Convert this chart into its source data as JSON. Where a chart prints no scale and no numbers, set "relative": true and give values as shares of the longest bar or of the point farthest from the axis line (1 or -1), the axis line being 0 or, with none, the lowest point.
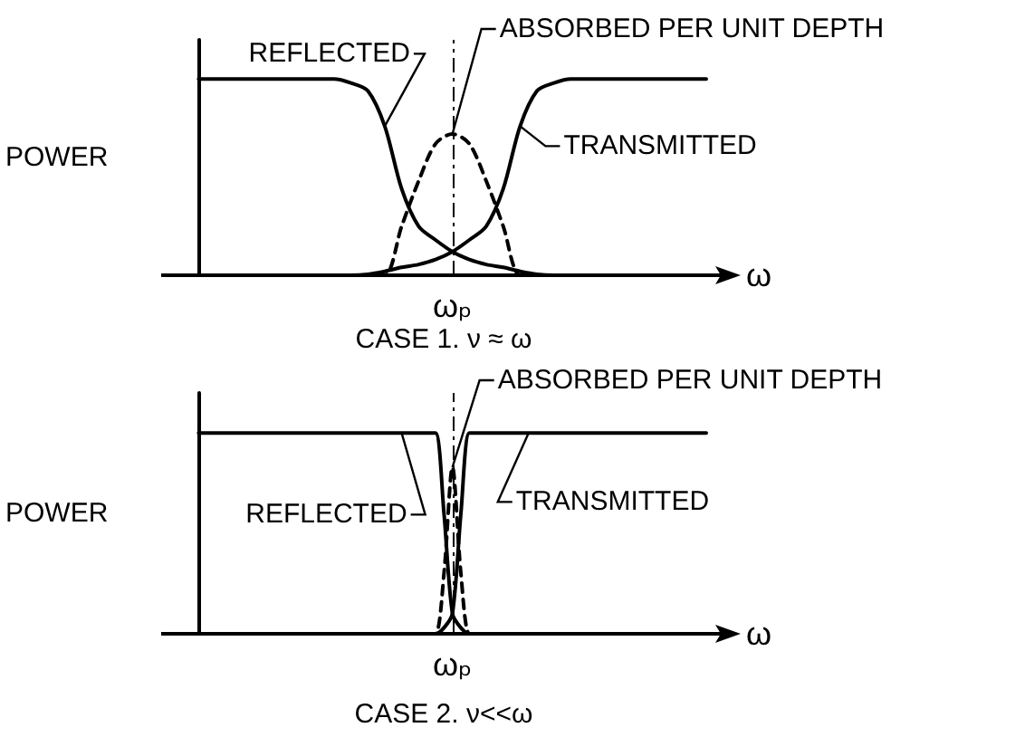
{
  "chart_data": [
    {
      "type": "line",
      "relative": true,
      "title": "CASE 1. ν ≈ ω",
      "xlabel": "ω",
      "ylabel": "POWER",
      "categories": [
        null,
        null,
        null,
        null,
        null,
        null,
        null,
        null,
        null,
        null,
        null,
        null,
        null,
        null,
        null,
        null,
        null,
        null,
        null,
        null,
        null,
        null,
        null,
        null,
        null,
        null,
        null,
        null,
        null,
        null,
        null
      ],
      "series": [
        {
          "name": "REFLECTED",
          "color": "#000000",
          "values": [
            1,
            1,
            1,
            1,
            1,
            1,
            1,
            1,
            1,
            0.98,
            0.94,
            0.76,
            0.44,
            0.25,
            0.18,
            0.12,
            0.08,
            0.055,
            0.04,
            0.02,
            0.005,
            0,
            0,
            0,
            0,
            0,
            0,
            0,
            0,
            0,
            0
          ]
        },
        {
          "name": "TRANSMITTED",
          "color": "#000000",
          "values": [
            0,
            0,
            0,
            0,
            0,
            0,
            0,
            0,
            0,
            0,
            0.005,
            0.02,
            0.04,
            0.055,
            0.08,
            0.12,
            0.18,
            0.25,
            0.44,
            0.76,
            0.94,
            0.98,
            1,
            1,
            1,
            1,
            1,
            1,
            1,
            1,
            1
          ]
        },
        {
          "name": "ABSORBED PER UNIT DEPTH",
          "color": "#000000",
          "line_style": "dashed",
          "values": [
            0,
            0,
            0,
            0,
            0,
            0,
            0,
            0,
            0,
            0,
            0,
            0,
            0.25,
            0.48,
            0.67,
            0.72,
            0.67,
            0.48,
            0.25,
            0,
            0,
            0,
            0,
            0,
            0,
            0,
            0,
            0,
            0,
            0,
            0
          ]
        }
      ],
      "annotations": [
        "ωₚ"
      ]
    },
    {
      "type": "line",
      "relative": true,
      "title": "CASE 2. ν<<ω",
      "xlabel": "ω",
      "ylabel": "POWER",
      "categories": [
        null,
        null,
        null,
        null,
        null,
        null,
        null,
        null,
        null,
        null,
        null,
        null,
        null,
        null,
        null,
        null,
        null,
        null,
        null,
        null,
        null,
        null,
        null,
        null,
        null,
        null,
        null,
        null,
        null,
        null,
        null,
        null,
        null,
        null,
        null,
        null,
        null,
        null,
        null,
        null,
        null,
        null,
        null,
        null,
        null,
        null,
        null,
        null,
        null,
        null,
        null,
        null,
        null,
        null,
        null,
        null,
        null,
        null,
        null,
        null,
        null
      ],
      "series": [
        {
          "name": "REFLECTED",
          "color": "#000000",
          "values": [
            1,
            1,
            1,
            1,
            1,
            1,
            1,
            1,
            1,
            1,
            1,
            1,
            1,
            1,
            1,
            1,
            1,
            1,
            1,
            1,
            1,
            1,
            1,
            1,
            1,
            1,
            1,
            1,
            1,
            0.6,
            0.1,
            0.03,
            0,
            0,
            0,
            0,
            0,
            0,
            0,
            0,
            0,
            0,
            0,
            0,
            0,
            0,
            0,
            0,
            0,
            0,
            0,
            0,
            0,
            0,
            0,
            0,
            0,
            0,
            0,
            0,
            0
          ]
        },
        {
          "name": "TRANSMITTED",
          "color": "#000000",
          "values": [
            0,
            0,
            0,
            0,
            0,
            0,
            0,
            0,
            0,
            0,
            0,
            0,
            0,
            0,
            0,
            0,
            0,
            0,
            0,
            0,
            0,
            0,
            0,
            0,
            0,
            0,
            0,
            0,
            0,
            0.03,
            0.1,
            0.6,
            1,
            1,
            1,
            1,
            1,
            1,
            1,
            1,
            1,
            1,
            1,
            1,
            1,
            1,
            1,
            1,
            1,
            1,
            1,
            1,
            1,
            1,
            1,
            1,
            1,
            1,
            1,
            1,
            1
          ]
        },
        {
          "name": "ABSORBED PER UNIT DEPTH",
          "color": "#000000",
          "line_style": "dashed",
          "values": [
            0,
            0,
            0,
            0,
            0,
            0,
            0,
            0,
            0,
            0,
            0,
            0,
            0,
            0,
            0,
            0,
            0,
            0,
            0,
            0,
            0,
            0,
            0,
            0,
            0,
            0,
            0,
            0,
            0,
            0.3,
            0.83,
            0.3,
            0,
            0,
            0,
            0,
            0,
            0,
            0,
            0,
            0,
            0,
            0,
            0,
            0,
            0,
            0,
            0,
            0,
            0,
            0,
            0,
            0,
            0,
            0,
            0,
            0,
            0,
            0,
            0,
            0
          ]
        }
      ],
      "annotations": [
        "ωₚ"
      ]
    }
  ]
}
